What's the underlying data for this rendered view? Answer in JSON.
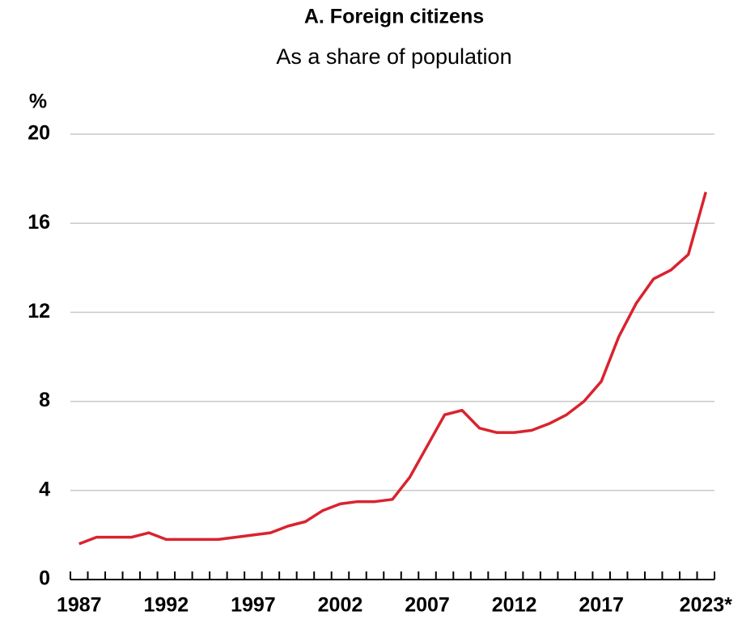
{
  "chart_data": {
    "type": "line",
    "title": "A. Foreign citizens",
    "subtitle": "As a share of population",
    "y_unit": "%",
    "categories": [
      "1987",
      null,
      null,
      null,
      null,
      "1992",
      null,
      null,
      null,
      null,
      "1997",
      null,
      null,
      null,
      null,
      "2002",
      null,
      null,
      null,
      null,
      "2007",
      null,
      null,
      null,
      null,
      "2012",
      null,
      null,
      null,
      null,
      "2017",
      null,
      null,
      null,
      null,
      null,
      "2023*"
    ],
    "series": [
      {
        "name": "Foreign citizens",
        "color": "#d9232e",
        "values": [
          1.6,
          1.9,
          1.9,
          1.9,
          2.1,
          1.8,
          1.8,
          1.8,
          1.8,
          1.9,
          2.0,
          2.1,
          2.4,
          2.6,
          3.1,
          3.4,
          3.5,
          3.5,
          3.6,
          4.6,
          6.0,
          7.4,
          7.6,
          6.8,
          6.6,
          6.6,
          6.7,
          7.0,
          7.4,
          8.0,
          8.9,
          10.9,
          12.4,
          13.5,
          13.9,
          14.6,
          17.4
        ]
      }
    ],
    "ylim": [
      0,
      20
    ],
    "yticks": [
      0,
      4,
      8,
      12,
      16,
      20
    ],
    "grid": true
  }
}
